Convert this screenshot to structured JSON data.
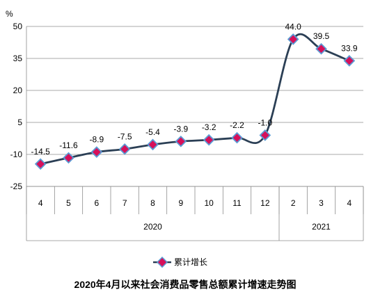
{
  "chart_data": {
    "type": "line",
    "title": "2020年4月以来社会消费品零售总额累计增速走势图",
    "ylabel": "%",
    "ylim": [
      -25,
      50
    ],
    "yticks": [
      -25,
      -10,
      5,
      20,
      35,
      50
    ],
    "grid": "horizontal",
    "legend_position": "bottom",
    "categories": [
      "4",
      "5",
      "6",
      "7",
      "8",
      "9",
      "10",
      "11",
      "12",
      "2",
      "3",
      "4"
    ],
    "groups": [
      {
        "label": "2020",
        "span": 9
      },
      {
        "label": "2021",
        "span": 3
      }
    ],
    "series": [
      {
        "name": "累计增长",
        "values": [
          -14.5,
          -11.6,
          -8.9,
          -7.5,
          -5.4,
          -3.9,
          -3.2,
          -2.2,
          -1.0,
          44.0,
          39.5,
          33.9
        ],
        "labels": [
          "-14.5",
          "-11.6",
          "-8.9",
          "-7.5",
          "-5.4",
          "-3.9",
          "-3.2",
          "-2.2",
          "-1.0",
          "44.0",
          "39.5",
          "33.9"
        ],
        "line_color": "#2b3f55",
        "marker_fill": "#d6105a",
        "marker_edge": "#5b9bd5"
      }
    ]
  }
}
